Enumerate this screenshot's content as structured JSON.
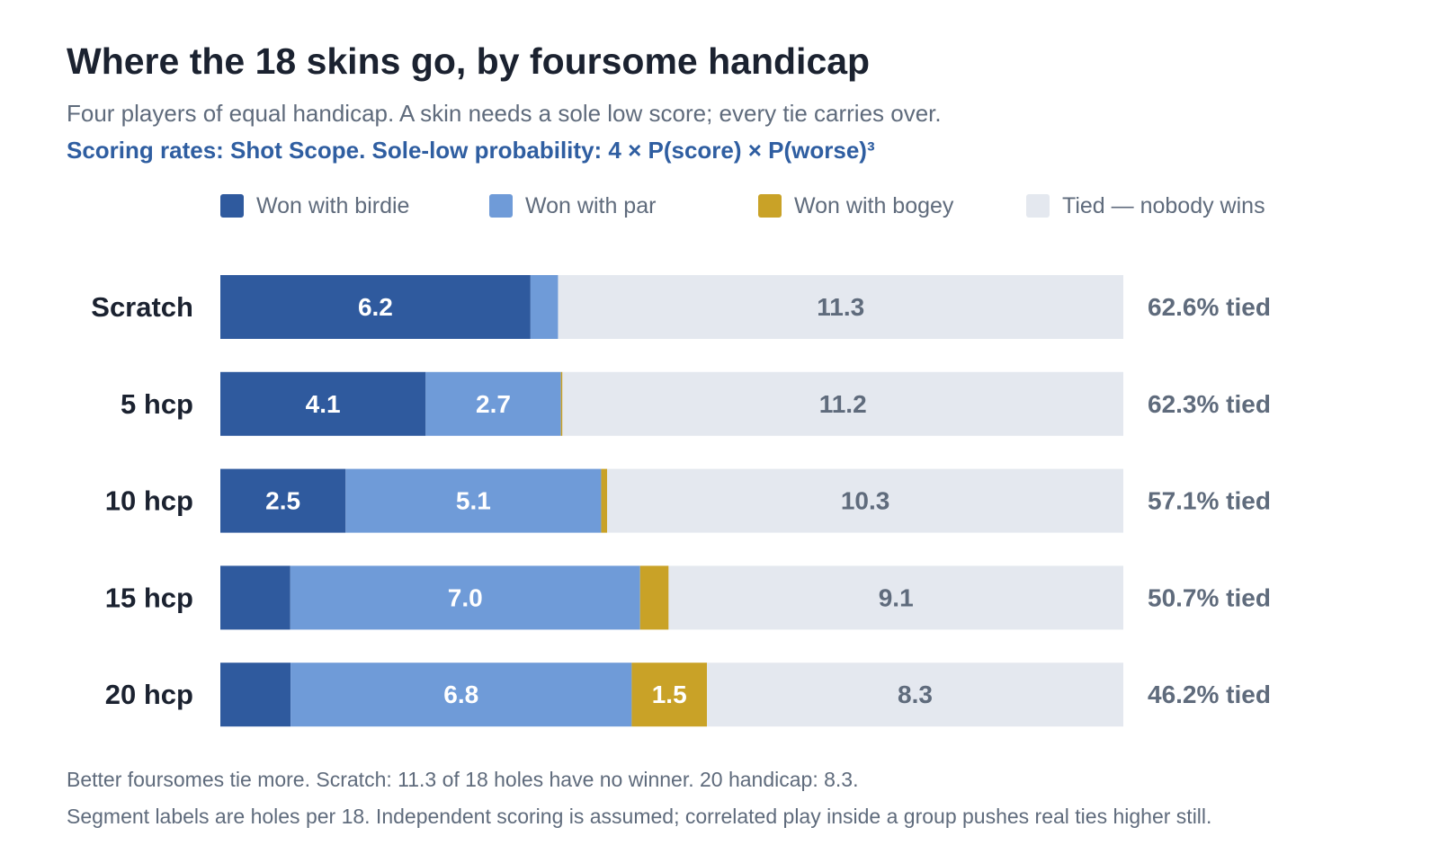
{
  "header": {
    "title": "Where the 18 skins go, by foursome handicap",
    "subtitle": "Four players of equal handicap. A skin needs a sole low score; every tie carries over.",
    "source": "Scoring rates: Shot Scope. Sole-low probability: 4 × P(score) × P(worse)³"
  },
  "footnotes": [
    "Better foursomes tie more. Scratch: 11.3 of 18 holes have no winner. 20 handicap: 8.3.",
    "Segment labels are holes per 18. Independent scoring is assumed; correlated play inside a group pushes real ties higher still."
  ],
  "chart_data": {
    "type": "bar",
    "orientation": "horizontal",
    "stacked": true,
    "xlim": [
      0,
      18
    ],
    "legend_position": "top",
    "grid": false,
    "categories": [
      "Scratch",
      "5 hcp",
      "10 hcp",
      "15 hcp",
      "20 hcp"
    ],
    "series": [
      {
        "name": "Won with birdie",
        "color": "#2f5a9e",
        "label_color": "#ffffff",
        "values": [
          6.2,
          4.1,
          2.5,
          1.4,
          1.4
        ],
        "labels": [
          "6.2",
          "4.1",
          "2.5",
          "",
          ""
        ]
      },
      {
        "name": "Won with par",
        "color": "#6f9bd8",
        "label_color": "#ffffff",
        "values": [
          0.55,
          2.7,
          5.1,
          7.0,
          6.8
        ],
        "labels": [
          "",
          "2.7",
          "5.1",
          "7.0",
          "6.8"
        ]
      },
      {
        "name": "Won with bogey",
        "color": "#c9a227",
        "label_color": "#ffffff",
        "values": [
          0.0,
          0.03,
          0.12,
          0.57,
          1.5
        ],
        "labels": [
          "",
          "",
          "",
          "",
          "1.5"
        ]
      },
      {
        "name": "Tied — nobody wins",
        "color": "#e4e8ef",
        "label_color": "#5f6b7c",
        "values": [
          11.3,
          11.2,
          10.3,
          9.1,
          8.3
        ],
        "labels": [
          "11.3",
          "11.2",
          "10.3",
          "9.1",
          "8.3"
        ]
      }
    ],
    "row_annotations": [
      "62.6% tied",
      "62.3% tied",
      "57.1% tied",
      "50.7% tied",
      "46.2% tied"
    ]
  }
}
